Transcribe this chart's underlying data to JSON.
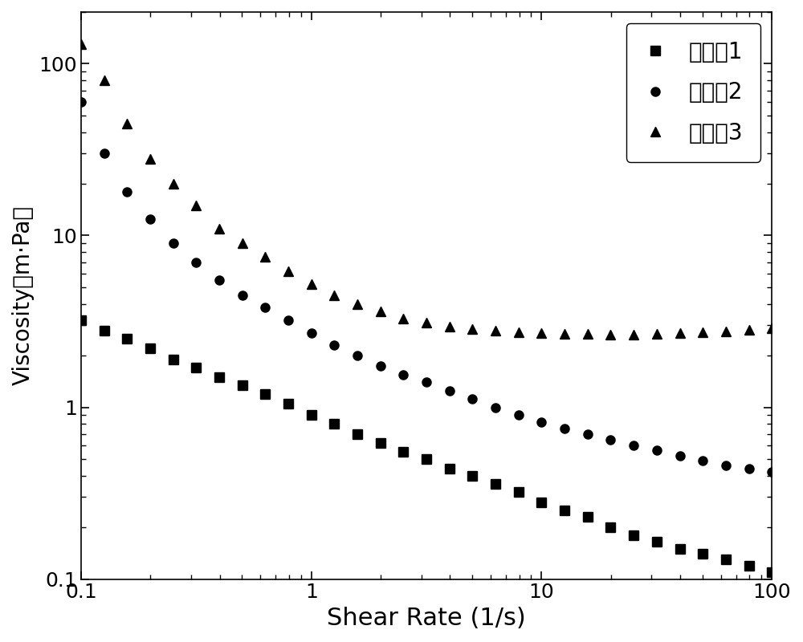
{
  "xlabel": "Shear Rate (1/s)",
  "ylabel": "Viscosity（m·Pa）",
  "xlim": [
    0.1,
    100
  ],
  "ylim": [
    0.1,
    200
  ],
  "legend_labels": [
    "实施例1",
    "实施例2",
    "实施例3"
  ],
  "markers": [
    "s",
    "o",
    "^"
  ],
  "colors": [
    "#000000",
    "#000000",
    "#000000"
  ],
  "marker_size": 8,
  "xlabel_fontsize": 22,
  "ylabel_fontsize": 20,
  "tick_fontsize": 18,
  "legend_fontsize": 20,
  "series1_shear": [
    0.1,
    0.126,
    0.158,
    0.2,
    0.251,
    0.316,
    0.398,
    0.501,
    0.631,
    0.794,
    1.0,
    1.259,
    1.585,
    1.995,
    2.512,
    3.162,
    3.981,
    5.012,
    6.31,
    7.943,
    10.0,
    12.589,
    15.849,
    19.953,
    25.119,
    31.623,
    39.811,
    50.119,
    63.096,
    79.433,
    100.0
  ],
  "series1_visc": [
    3.2,
    2.8,
    2.5,
    2.2,
    1.9,
    1.7,
    1.5,
    1.35,
    1.2,
    1.05,
    0.9,
    0.8,
    0.7,
    0.62,
    0.55,
    0.5,
    0.44,
    0.4,
    0.36,
    0.32,
    0.28,
    0.25,
    0.23,
    0.2,
    0.18,
    0.165,
    0.15,
    0.14,
    0.13,
    0.12,
    0.11
  ],
  "series2_shear": [
    0.1,
    0.126,
    0.158,
    0.2,
    0.251,
    0.316,
    0.398,
    0.501,
    0.631,
    0.794,
    1.0,
    1.259,
    1.585,
    1.995,
    2.512,
    3.162,
    3.981,
    5.012,
    6.31,
    7.943,
    10.0,
    12.589,
    15.849,
    19.953,
    25.119,
    31.623,
    39.811,
    50.119,
    63.096,
    79.433,
    100.0
  ],
  "series2_visc": [
    60.0,
    30.0,
    18.0,
    12.5,
    9.0,
    7.0,
    5.5,
    4.5,
    3.8,
    3.2,
    2.7,
    2.3,
    2.0,
    1.75,
    1.55,
    1.4,
    1.25,
    1.12,
    1.0,
    0.9,
    0.82,
    0.75,
    0.7,
    0.65,
    0.6,
    0.56,
    0.52,
    0.49,
    0.46,
    0.44,
    0.42
  ],
  "series3_shear": [
    0.1,
    0.126,
    0.158,
    0.2,
    0.251,
    0.316,
    0.398,
    0.501,
    0.631,
    0.794,
    1.0,
    1.259,
    1.585,
    1.995,
    2.512,
    3.162,
    3.981,
    5.012,
    6.31,
    7.943,
    10.0,
    12.589,
    15.849,
    19.953,
    25.119,
    31.623,
    39.811,
    50.119,
    63.096,
    79.433,
    100.0
  ],
  "series3_visc": [
    130.0,
    80.0,
    45.0,
    28.0,
    20.0,
    15.0,
    11.0,
    9.0,
    7.5,
    6.2,
    5.2,
    4.5,
    4.0,
    3.6,
    3.3,
    3.1,
    2.95,
    2.85,
    2.78,
    2.73,
    2.7,
    2.68,
    2.67,
    2.65,
    2.65,
    2.67,
    2.7,
    2.73,
    2.77,
    2.82,
    2.88
  ]
}
